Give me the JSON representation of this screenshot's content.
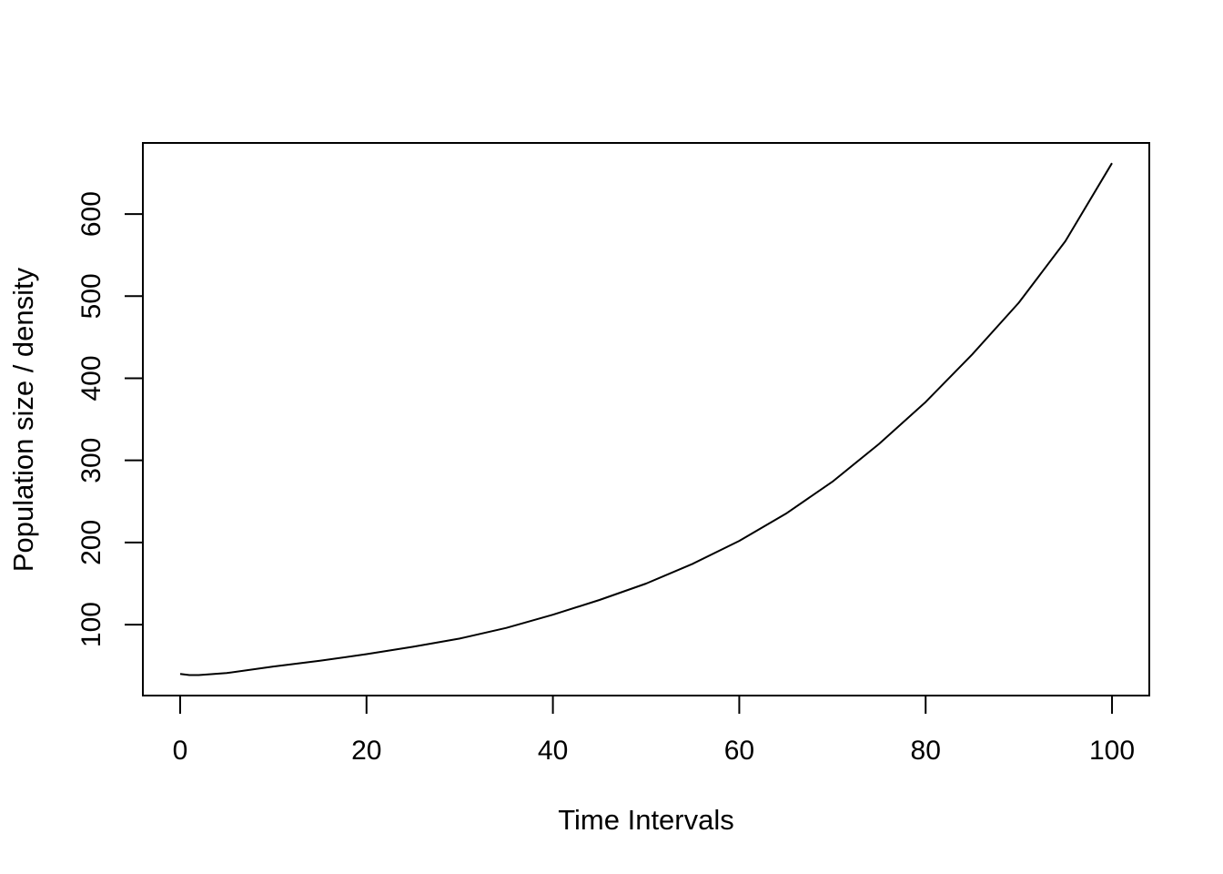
{
  "chart_data": {
    "type": "line",
    "title": "",
    "xlabel": "Time Intervals",
    "ylabel": "Population size / density",
    "xlim": [
      -4,
      104
    ],
    "ylim": [
      13.6,
      686.6
    ],
    "x_ticks": [
      0,
      20,
      40,
      60,
      80,
      100
    ],
    "y_ticks": [
      100,
      200,
      300,
      400,
      500,
      600
    ],
    "grid": false,
    "legend": "none",
    "series": [
      {
        "color": "#000000",
        "x": [
          0,
          1,
          2,
          5,
          10,
          15,
          20,
          25,
          30,
          35,
          40,
          45,
          50,
          55,
          60,
          65,
          70,
          75,
          80,
          85,
          90,
          95,
          100
        ],
        "y": [
          40,
          38.5,
          38.5,
          41,
          49,
          56,
          64,
          73,
          83,
          96,
          112,
          130,
          150,
          174,
          202,
          235,
          274,
          320,
          371,
          429,
          492,
          567,
          662
        ]
      }
    ]
  }
}
